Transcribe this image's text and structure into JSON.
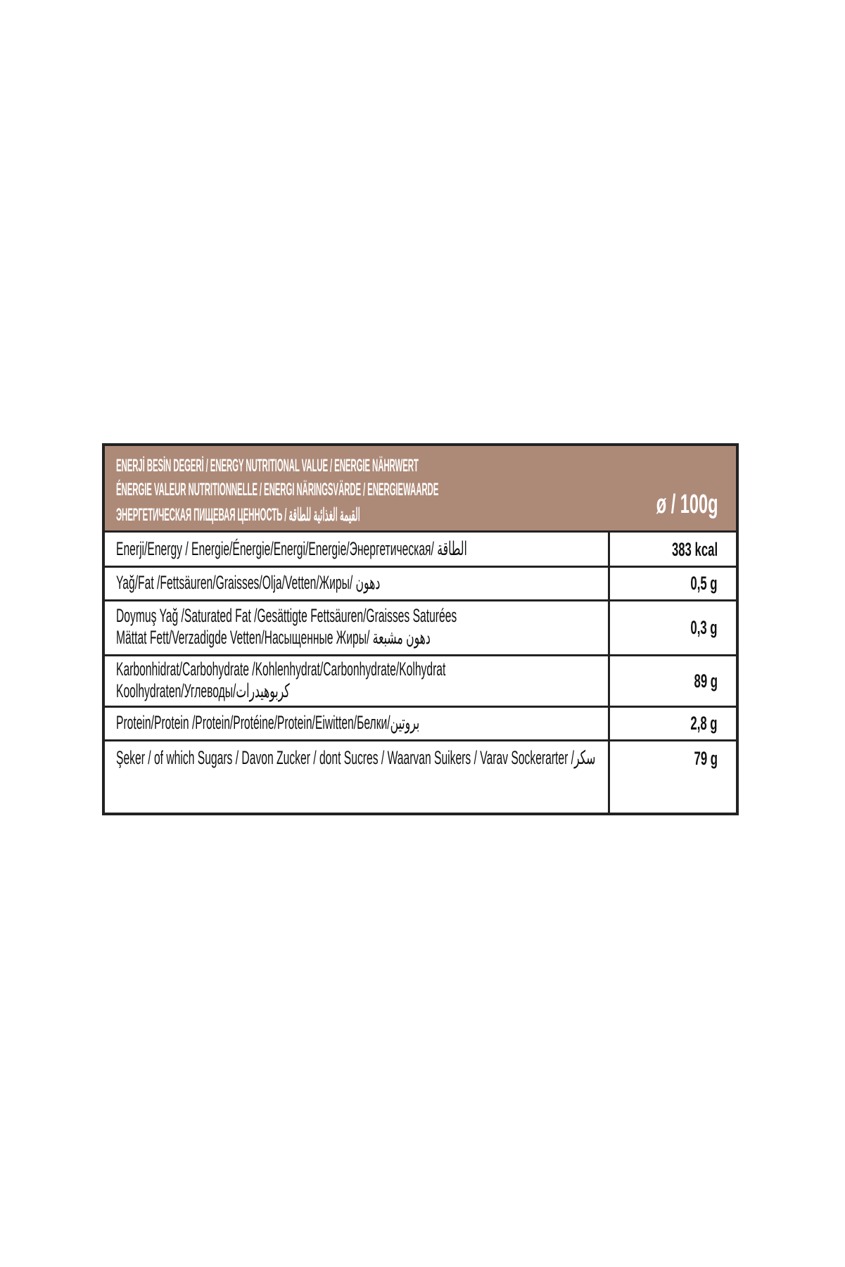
{
  "header": {
    "lines": [
      "ENERJİ BESİN DEGERİ / ENERGY NUTRITIONAL VALUE / ENERGIE NÄHRWERT",
      "ÉNERGIE VALEUR NUTRITIONNELLE / ENERGI NÄRINGSVÄRDE / ENERGIEWAARDE",
      "ЭНЕРГЕТИЧЕСКАЯ ПИЩЕВАЯ ЦЕННОСТЬ / القيمة الغذائية للطاقة"
    ],
    "per": "ø / 100g",
    "color": "#ad8a78"
  },
  "rows": [
    {
      "lines": [
        "Enerji/Energy / Energie/Énergie/Energi/Energie/Энергетическая/ الطاقة"
      ],
      "value": "383 kcal"
    },
    {
      "lines": [
        "Yağ/Fat /Fettsäuren/Graisses/Olja/Vetten/Жиры/ دهون"
      ],
      "value": "0,5 g"
    },
    {
      "lines": [
        "Doymuş Yağ /Saturated Fat /Gesättigte Fettsäuren/Graisses Saturées",
        "Mättat Fett/Verzadigde Vetten/Насыщенные Жиры/  دهون مشبعة"
      ],
      "value": "0,3 g"
    },
    {
      "lines": [
        "Karbonhidrat/Carbohydrate /Kohlenhydrat/Carbonhydrate/Kolhydrat",
        "Koolhydraten/Углеводы/كربوهيدرات"
      ],
      "value": "89 g"
    },
    {
      "lines": [
        "Protein/Protein /Protein/Protéine/Protein/Eiwitten/Белки/بروتين"
      ],
      "value": "2,8 g"
    },
    {
      "lines": [
        "Şeker / of which Sugars / Davon Zucker / dont Sucres / Waarvan Suikers / Varav Sockerarter /سكر"
      ],
      "value": "79 g"
    }
  ]
}
